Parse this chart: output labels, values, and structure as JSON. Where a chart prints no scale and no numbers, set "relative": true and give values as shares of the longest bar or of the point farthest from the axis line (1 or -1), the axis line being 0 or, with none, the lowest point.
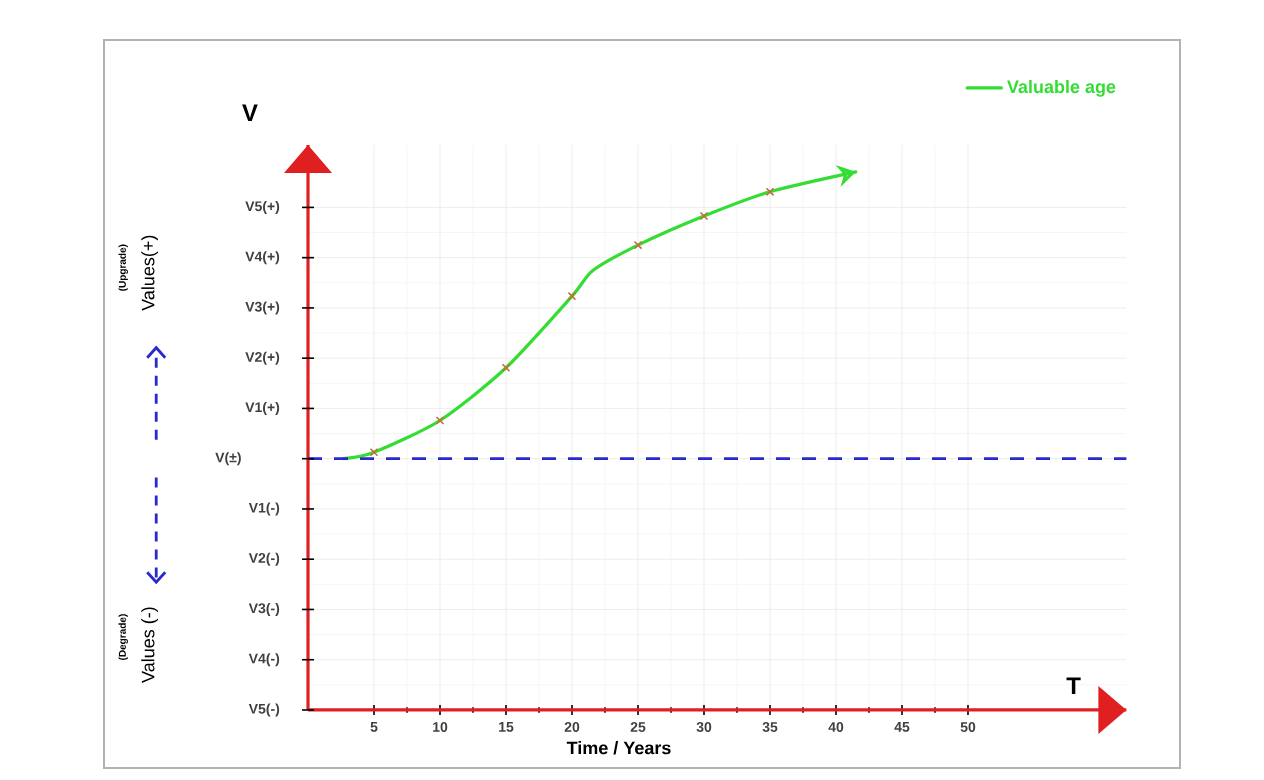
{
  "chart_data": {
    "type": "line",
    "xlabel": "Time / Years",
    "ylabel": "V",
    "relative": true,
    "xlim": [
      0,
      62
    ],
    "xticks": [
      5,
      10,
      15,
      20,
      25,
      30,
      35,
      40,
      45,
      50
    ],
    "grid": true,
    "legend": "top right",
    "series": [
      {
        "name": "Valuable age",
        "color": "#33dd33",
        "marker": "none",
        "x": [
          2.7,
          5,
          10,
          15,
          20,
          21.6,
          25,
          30,
          35,
          41.5
        ],
        "values": [
          0.467,
          0.479,
          0.538,
          0.636,
          0.769,
          0.817,
          0.864,
          0.918,
          0.963,
          1
        ]
      },
      {
        "color": "#c0703a",
        "type": "scatter",
        "marker": "cross",
        "x": [
          5,
          10,
          15,
          20,
          25,
          30,
          35
        ],
        "values": [
          0.479,
          0.538,
          0.636,
          0.769,
          0.864,
          0.918,
          0.963
        ]
      }
    ],
    "ref_lines": [
      {
        "axis": "y",
        "value": 0.467,
        "color": "#2a2acc",
        "line_style": "dashed"
      }
    ],
    "annotations": [
      "Values(+)",
      "(Upgrade)",
      "Values (-)",
      "(Degrade)",
      "T",
      "V5(+)",
      "V4(+)",
      "V3(+)",
      "V2(+)",
      "V1(+)",
      "V(±)",
      "V1(-)",
      "V2(-)",
      "V3(-)",
      "V4(-)",
      "V5(-)"
    ]
  }
}
